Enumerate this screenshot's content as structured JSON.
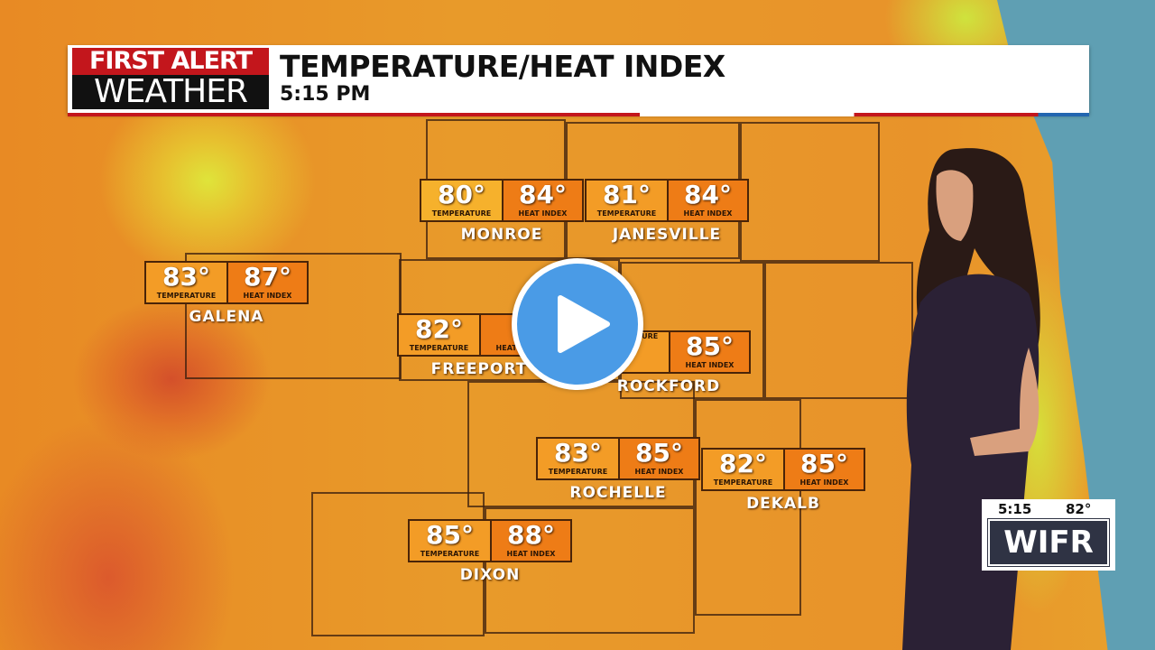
{
  "header": {
    "logo_top": "FIRST ALERT",
    "logo_bottom": "WEATHER",
    "title": "TEMPERATURE/HEAT INDEX",
    "time": "5:15 PM"
  },
  "labels": {
    "temperature": "TEMPERATURE",
    "heat_index": "HEAT INDEX"
  },
  "cities": [
    {
      "name": "MONROE",
      "temp": "80°",
      "heat": "84°"
    },
    {
      "name": "JANESVILLE",
      "temp": "81°",
      "heat": "84°"
    },
    {
      "name": "GALENA",
      "temp": "83°",
      "heat": "87°"
    },
    {
      "name": "FREEPORT",
      "temp": "82°",
      "heat": "8"
    },
    {
      "name": "ROCKFORD",
      "temp": "",
      "heat": "85°"
    },
    {
      "name": "ROCHELLE",
      "temp": "83°",
      "heat": "85°"
    },
    {
      "name": "DEKALB",
      "temp": "82°",
      "heat": "85°"
    },
    {
      "name": "DIXON",
      "temp": "85°",
      "heat": "88°"
    }
  ],
  "station_bug": {
    "time": "5:15",
    "temp": "82°",
    "logo": "WIFR"
  },
  "player": {
    "play_icon": "play-icon",
    "accent": "#4a9be6"
  }
}
